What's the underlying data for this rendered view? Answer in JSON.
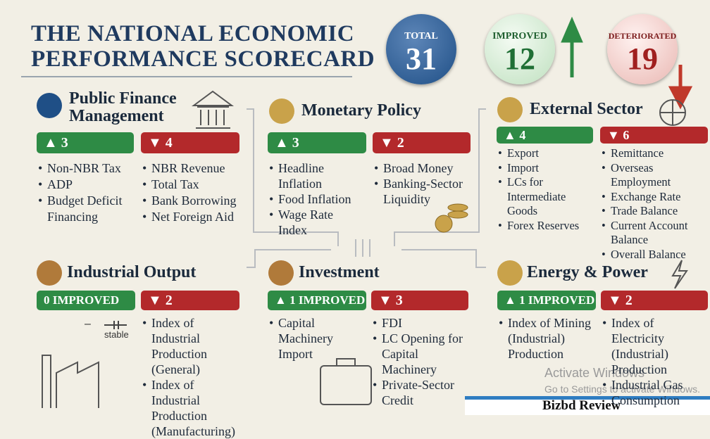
{
  "header": {
    "title_lines": [
      "THE NATIONAL ECONOMIC",
      "PERFORMANCE SCORECARD"
    ],
    "totals": [
      {
        "label": "TOTAL",
        "value": 31
      },
      {
        "label": "IMPROVED",
        "value": 12
      },
      {
        "label": "DETERIORATED",
        "value": 19
      }
    ]
  },
  "sections": [
    {
      "title": "Public Finance Management",
      "improved_badge": "▲ 3",
      "deteriorated_badge": "▼ 4",
      "improved": [
        "Non-NBR Tax",
        "ADP",
        "Budget Deficit Financing"
      ],
      "deteriorated": [
        "NBR Revenue",
        "Total Tax",
        "Bank Borrowing",
        "Net Foreign Aid"
      ]
    },
    {
      "title": "Monetary Policy",
      "improved_badge": "▲ 3",
      "deteriorated_badge": "▼ 2",
      "improved": [
        "Headline Inflation",
        "Food Inflation",
        "Wage Rate Index"
      ],
      "deteriorated": [
        "Broad Money",
        "Banking-Sector Liquidity"
      ]
    },
    {
      "title": "External Sector",
      "improved_badge": "▲ 4",
      "deteriorated_badge": "▼ 6",
      "improved": [
        "Export",
        "Import",
        "LCs for Intermediate Goods",
        "Forex Reserves"
      ],
      "deteriorated": [
        "Remittance",
        "Overseas Employment",
        "Exchange Rate",
        "Trade Balance",
        "Current Account Balance",
        "Overall Balance"
      ]
    },
    {
      "title": "Industrial Output",
      "improved_badge": "0 IMPROVED",
      "deteriorated_badge": "▼ 2",
      "improved": [],
      "notes": [
        "–",
        "stable"
      ],
      "deteriorated": [
        "Index of Industrial Production (General)",
        "Index of Industrial Production (Manufacturing)"
      ]
    },
    {
      "title": "Investment",
      "improved_badge": "▲ 1 IMPROVED",
      "deteriorated_badge": "▼ 3",
      "improved": [
        "Capital Machinery Import"
      ],
      "deteriorated": [
        "FDI",
        "LC Opening for Capital Machinery",
        "Private-Sector Credit"
      ]
    },
    {
      "title": "Energy & Power",
      "improved_badge": "▲ 1 IMPROVED",
      "deteriorated_badge": "▼ 2",
      "improved": [
        "Index of Mining (Industrial) Production"
      ],
      "deteriorated": [
        "Index of Electricity (Industrial) Production",
        "Industrial Gas Consumption"
      ]
    }
  ],
  "watermark": [
    "Activate Windows",
    "Go to Settings to activate Windows."
  ],
  "brand": "Bizbd Review"
}
